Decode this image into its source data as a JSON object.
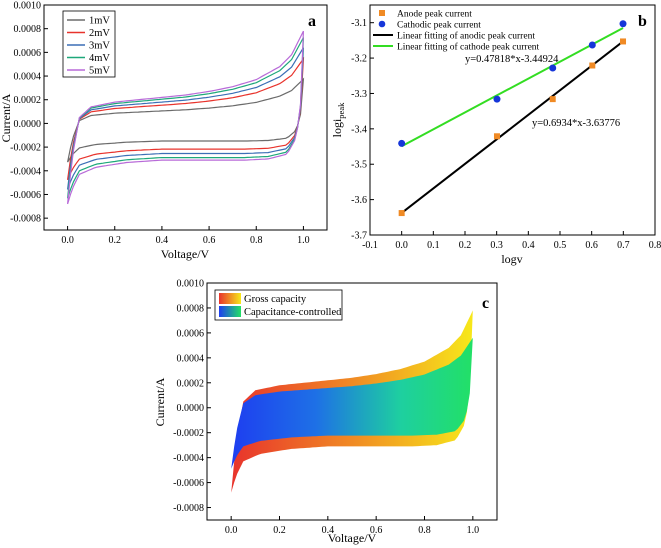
{
  "colors": {
    "curve_1mV": "#6b6b6b",
    "curve_2mV": "#e8332c",
    "curve_3mV": "#3b6fb6",
    "curve_4mV": "#1ea87a",
    "curve_5mV": "#b86ad8",
    "anode": "#f08a24",
    "cathode": "#1636d9",
    "fit_anode": "#000000",
    "fit_cathode": "#33dd22",
    "gross_yellow": "#f7e81a",
    "gross_red": "#e8332c",
    "cap_blue": "#1e3ef0",
    "cap_green": "#22dd66"
  },
  "chart_data": [
    {
      "panel": "a",
      "type": "line",
      "title": "",
      "xlabel": "Voltage/V",
      "ylabel": "Current/A",
      "xlim": [
        -0.1,
        1.1
      ],
      "ylim": [
        -0.0009,
        0.001
      ],
      "xticks": [
        "0.0",
        "0.2",
        "0.4",
        "0.6",
        "0.8",
        "1.0"
      ],
      "yticks": [
        "-0.0008",
        "-0.0006",
        "-0.0004",
        "-0.0002",
        "0.0000",
        "0.0002",
        "0.0004",
        "0.0006",
        "0.0008",
        "0.0010"
      ],
      "legend_position": "top-left",
      "series": [
        {
          "name": "1mV",
          "scale": 0.48
        },
        {
          "name": "2mV",
          "scale": 0.7
        },
        {
          "name": "3mV",
          "scale": 0.82
        },
        {
          "name": "4mV",
          "scale": 0.93
        },
        {
          "name": "5mV",
          "scale": 1.0
        }
      ],
      "base_cv_5mV": {
        "upper_v": [
          0.0,
          0.02,
          0.05,
          0.1,
          0.2,
          0.3,
          0.4,
          0.5,
          0.6,
          0.7,
          0.8,
          0.9,
          0.95,
          1.0
        ],
        "upper_i": [
          -0.00068,
          -0.00028,
          5e-05,
          0.00014,
          0.00018,
          0.0002,
          0.00022,
          0.00024,
          0.00027,
          0.00031,
          0.00037,
          0.00048,
          0.00058,
          0.00078
        ],
        "lower_v": [
          1.0,
          0.99,
          0.97,
          0.93,
          0.85,
          0.75,
          0.6,
          0.4,
          0.25,
          0.12,
          0.05,
          0.02,
          0.0
        ],
        "lower_i": [
          0.00078,
          0.0002,
          -0.00012,
          -0.00026,
          -0.0003,
          -0.00031,
          -0.00031,
          -0.00031,
          -0.00033,
          -0.00037,
          -0.00043,
          -0.00055,
          -0.00068
        ]
      }
    },
    {
      "panel": "b",
      "type": "scatter",
      "title": "",
      "xlabel": "logv",
      "ylabel": "logi",
      "ylabel_subscript": "peak",
      "xlim": [
        -0.1,
        0.8
      ],
      "ylim": [
        -3.7,
        -3.05
      ],
      "xticks": [
        "-0.1",
        "0.0",
        "0.1",
        "0.2",
        "0.3",
        "0.4",
        "0.5",
        "0.6",
        "0.7",
        "0.8"
      ],
      "yticks": [
        "-3.7",
        "-3.6",
        "-3.5",
        "-3.4",
        "-3.3",
        "-3.2",
        "-3.1"
      ],
      "legend_position": "top-left",
      "series": [
        {
          "name": "Anode peak current",
          "x": [
            0.0,
            0.301,
            0.477,
            0.602,
            0.699
          ],
          "y": [
            -3.638,
            -3.421,
            -3.316,
            -3.221,
            -3.153
          ]
        },
        {
          "name": "Cathodic peak current",
          "x": [
            0.0,
            0.301,
            0.477,
            0.602,
            0.699
          ],
          "y": [
            -3.441,
            -3.316,
            -3.228,
            -3.163,
            -3.103
          ]
        },
        {
          "name": "Linear fitting of anodic peak current",
          "slope": 0.6934,
          "intercept": -3.63776,
          "xrange": [
            0.0,
            0.699
          ]
        },
        {
          "name": "Linear fitting of cathode peak current",
          "slope": 0.47818,
          "intercept": -3.44924,
          "xrange": [
            0.0,
            0.699
          ]
        }
      ],
      "annotations": [
        "y=0.47818*x-3.44924",
        "y=0.6934*x-3.63776"
      ]
    },
    {
      "panel": "c",
      "type": "area",
      "title": "",
      "xlabel": "Voltage/V",
      "ylabel": "Current/A",
      "xlim": [
        -0.1,
        1.1
      ],
      "ylim": [
        -0.0009,
        0.001
      ],
      "xticks": [
        "0.0",
        "0.2",
        "0.4",
        "0.6",
        "0.8",
        "1.0"
      ],
      "yticks": [
        "-0.0008",
        "-0.0006",
        "-0.0004",
        "-0.0002",
        "0.0000",
        "0.0002",
        "0.0004",
        "0.0006",
        "0.0008",
        "0.0010"
      ],
      "legend_position": "top-left",
      "series": [
        {
          "name": "Gross capacity"
        },
        {
          "name": "Capacitance-controlled",
          "ratio": 0.72
        }
      ]
    }
  ],
  "panel_labels": {
    "a": "a",
    "b": "b",
    "c": "c"
  }
}
